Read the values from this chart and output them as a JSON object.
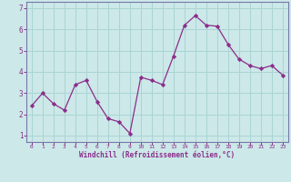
{
  "x": [
    0,
    1,
    2,
    3,
    4,
    5,
    6,
    7,
    8,
    9,
    10,
    11,
    12,
    13,
    14,
    15,
    16,
    17,
    18,
    19,
    20,
    21,
    22,
    23
  ],
  "y": [
    2.4,
    3.0,
    2.5,
    2.2,
    3.4,
    3.6,
    2.6,
    1.8,
    1.65,
    1.1,
    3.75,
    3.6,
    3.4,
    4.75,
    6.2,
    6.65,
    6.2,
    6.15,
    5.3,
    4.6,
    4.3,
    4.15,
    4.3,
    3.85
  ],
  "line_color": "#8B2D8B",
  "marker": "D",
  "marker_size": 2.2,
  "bg_color": "#cce8e8",
  "grid_color": "#aad4d4",
  "xlabel": "Windchill (Refroidissement éolien,°C)",
  "xlim": [
    -0.5,
    23.5
  ],
  "ylim": [
    0.7,
    7.3
  ],
  "xticks": [
    0,
    1,
    2,
    3,
    4,
    5,
    6,
    7,
    8,
    9,
    10,
    11,
    12,
    13,
    14,
    15,
    16,
    17,
    18,
    19,
    20,
    21,
    22,
    23
  ],
  "yticks": [
    1,
    2,
    3,
    4,
    5,
    6,
    7
  ],
  "tick_color": "#8B2D8B",
  "label_color": "#8B2D8B",
  "axis_color": "#8B2D8B",
  "spine_color": "#7777aa"
}
